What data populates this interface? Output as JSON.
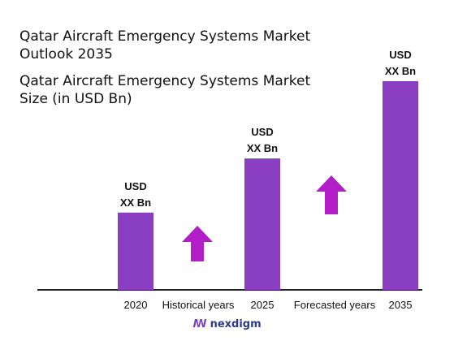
{
  "title": "Qatar Aircraft Emergency Systems Market Outlook 2035",
  "subtitle": "Qatar Aircraft Emergency Systems Market Size (in USD Bn)",
  "colors": {
    "bar": "#8a3fc3",
    "arrow": "#b41ec8",
    "axis": "#222222"
  },
  "chart_data": {
    "type": "bar",
    "categories": [
      "2020",
      "2025",
      "2035"
    ],
    "values": [
      1,
      1.7,
      2.7
    ],
    "value_labels": [
      [
        "USD",
        "XX Bn"
      ],
      [
        "USD",
        "XX Bn"
      ],
      [
        "USD",
        "XX Bn"
      ]
    ],
    "xlabel": "",
    "ylabel": "",
    "annotations": [
      "Historical years",
      "Forecasted years"
    ]
  },
  "logo": {
    "text": "nexdigm",
    "icon": "nexdigm-logo-icon"
  }
}
